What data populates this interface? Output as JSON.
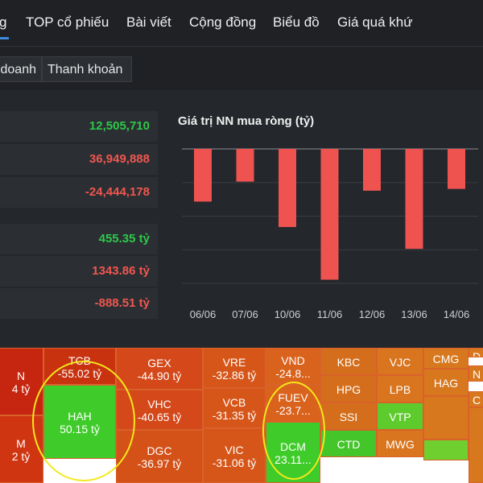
{
  "nav": {
    "items": [
      {
        "label": "g"
      },
      {
        "label": "TOP cổ phiếu"
      },
      {
        "label": "Bài viết"
      },
      {
        "label": "Cộng đồng"
      },
      {
        "label": "Biểu đồ"
      },
      {
        "label": "Giá quá khứ"
      }
    ]
  },
  "subtabs": [
    {
      "label": "doanh"
    },
    {
      "label": "Thanh khoản"
    }
  ],
  "stats": [
    {
      "value": "12,505,710",
      "color": "#2ec84a"
    },
    {
      "value": "36,949,888",
      "color": "#f0574f"
    },
    {
      "value": "-24,444,178",
      "color": "#f0574f"
    },
    {
      "value": "455.35 tỷ",
      "color": "#2ec84a"
    },
    {
      "value": "1343.86 tỷ",
      "color": "#f0574f"
    },
    {
      "value": "-888.51 tỷ",
      "color": "#f0574f"
    }
  ],
  "chart_data": {
    "type": "bar",
    "title": "Giá trị NN mua ròng (tỷ)",
    "categories": [
      "06/06",
      "07/06",
      "10/06",
      "11/06",
      "12/06",
      "13/06",
      "14/06"
    ],
    "values": [
      -290,
      -180,
      -430,
      -720,
      -230,
      -550,
      -220
    ],
    "ylim": [
      -740,
      0
    ],
    "grid": true,
    "bar_color": "#ef5350"
  },
  "heatmap": [
    {
      "symbol": "N",
      "value": "4 tỷ",
      "color": "#c6250f"
    },
    {
      "symbol": "M",
      "value": "2 tỷ",
      "color": "#cf3510"
    },
    {
      "symbol": "TCB",
      "value": "-55.02 tỷ",
      "color": "#c8320f"
    },
    {
      "symbol": "HAH",
      "value": "50.15 tỷ",
      "color": "#3fcc2a"
    },
    {
      "symbol": "GEX",
      "value": "-44.90 tỷ",
      "color": "#d4481a"
    },
    {
      "symbol": "VHC",
      "value": "-40.65 tỷ",
      "color": "#d4481a"
    },
    {
      "symbol": "DGC",
      "value": "-36.97 tỷ",
      "color": "#d45118"
    },
    {
      "symbol": "VRE",
      "value": "-32.86 tỷ",
      "color": "#d6561a"
    },
    {
      "symbol": "VCB",
      "value": "-31.35 tỷ",
      "color": "#d6561a"
    },
    {
      "symbol": "VIC",
      "value": "-31.06 tỷ",
      "color": "#d6561a"
    },
    {
      "symbol": "VND",
      "value": "-24.8...",
      "color": "#d9621c"
    },
    {
      "symbol": "FUEV",
      "value": "-23.7...",
      "color": "#d9621c"
    },
    {
      "symbol": "DCM",
      "value": "23.11...",
      "color": "#3fcc2a"
    },
    {
      "symbol": "KBC",
      "value": "",
      "color": "#d46e1c"
    },
    {
      "symbol": "HPG",
      "value": "",
      "color": "#d46e1c"
    },
    {
      "symbol": "SSI",
      "value": "",
      "color": "#d46e1c"
    },
    {
      "symbol": "CTD",
      "value": "",
      "color": "#44c52a"
    },
    {
      "symbol": "VJC",
      "value": "",
      "color": "#d8751e"
    },
    {
      "symbol": "LPB",
      "value": "",
      "color": "#d8751e"
    },
    {
      "symbol": "VTP",
      "value": "",
      "color": "#5ecb2c"
    },
    {
      "symbol": "MWG",
      "value": "",
      "color": "#d8751e"
    },
    {
      "symbol": "CMG",
      "value": "",
      "color": "#d8781e"
    },
    {
      "symbol": "HAG",
      "value": "",
      "color": "#d8781e"
    },
    {
      "symbol": "",
      "value": "",
      "color": "#d8781e"
    },
    {
      "symbol": "",
      "value": "",
      "color": "#6fcf2e"
    },
    {
      "symbol": "D",
      "value": "",
      "color": "#d8781e"
    },
    {
      "symbol": "N",
      "value": "",
      "color": "#d8781e"
    },
    {
      "symbol": "C",
      "value": "",
      "color": "#d8781e"
    },
    {
      "symbol": "",
      "value": "",
      "color": "#d8781e"
    }
  ]
}
